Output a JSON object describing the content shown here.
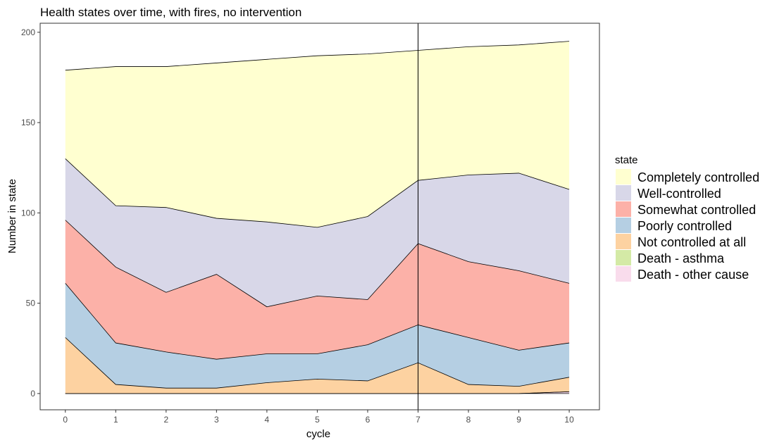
{
  "chart_data": {
    "type": "area",
    "title": "Health states over time, with fires, no intervention",
    "xlabel": "cycle",
    "ylabel": "Number in state",
    "x": [
      0,
      1,
      2,
      3,
      4,
      5,
      6,
      7,
      8,
      9,
      10
    ],
    "xlim": [
      -0.5,
      10.6
    ],
    "ylim": [
      -9,
      205
    ],
    "xticks": [
      0,
      1,
      2,
      3,
      4,
      5,
      6,
      7,
      8,
      9,
      10
    ],
    "yticks": [
      0,
      50,
      100,
      150,
      200
    ],
    "vline_x": 7,
    "stacking": "bottom-to-top: Death - other cause, Death - asthma, Not controlled at all, Poorly controlled, Somewhat controlled, Well-controlled, Completely controlled",
    "legend": {
      "title": "state",
      "position": "right"
    },
    "grid": false,
    "series": [
      {
        "name": "Completely controlled",
        "color": "#FFFFD0",
        "values": [
          49,
          77,
          78,
          86,
          90,
          95,
          90,
          72,
          71,
          71,
          82
        ]
      },
      {
        "name": "Well-controlled",
        "color": "#D8D7E8",
        "values": [
          34,
          34,
          47,
          31,
          47,
          38,
          46,
          35,
          48,
          54,
          52
        ]
      },
      {
        "name": "Somewhat controlled",
        "color": "#FCB1A8",
        "values": [
          35,
          42,
          33,
          47,
          26,
          32,
          25,
          45,
          42,
          44,
          33
        ]
      },
      {
        "name": "Poorly controlled",
        "color": "#B5CFE3",
        "values": [
          30,
          23,
          20,
          16,
          16,
          14,
          20,
          21,
          26,
          20,
          19
        ]
      },
      {
        "name": "Not controlled at all",
        "color": "#FDD2A1",
        "values": [
          31,
          5,
          3,
          3,
          6,
          8,
          7,
          17,
          5,
          4,
          8
        ]
      },
      {
        "name": "Death - asthma",
        "color": "#D4EAA6",
        "values": [
          0,
          0,
          0,
          0,
          0,
          0,
          0,
          0,
          0,
          0,
          0
        ]
      },
      {
        "name": "Death - other cause",
        "color": "#F9DCEC",
        "values": [
          0,
          0,
          0,
          0,
          0,
          0,
          0,
          0,
          0,
          0,
          1
        ]
      }
    ]
  }
}
